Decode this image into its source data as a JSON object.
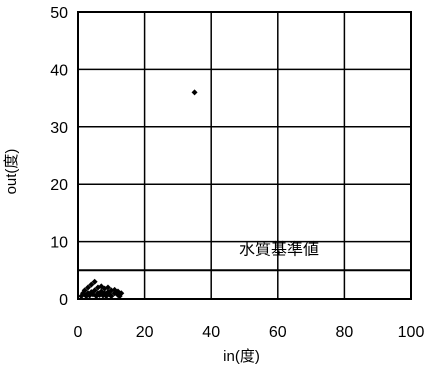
{
  "chart_data": {
    "type": "scatter",
    "title": "",
    "xlabel": "in(度)",
    "ylabel": "out(度)",
    "xlim": [
      0,
      100
    ],
    "ylim": [
      0,
      50
    ],
    "xticks": [
      0,
      20,
      40,
      60,
      80,
      100
    ],
    "yticks": [
      0,
      10,
      20,
      30,
      40,
      50
    ],
    "grid": true,
    "legend": "none",
    "marker_color": "#000000",
    "reference_line": {
      "y": 5,
      "label": "水質基準値"
    },
    "points": [
      {
        "x": 35,
        "y": 36
      },
      {
        "x": 1,
        "y": 0.5
      },
      {
        "x": 1.5,
        "y": 1
      },
      {
        "x": 2,
        "y": 0.8
      },
      {
        "x": 2,
        "y": 1.5
      },
      {
        "x": 2.5,
        "y": 0.5
      },
      {
        "x": 3,
        "y": 1
      },
      {
        "x": 3,
        "y": 2
      },
      {
        "x": 3.5,
        "y": 0.6
      },
      {
        "x": 4,
        "y": 1.2
      },
      {
        "x": 4,
        "y": 2.5
      },
      {
        "x": 4.5,
        "y": 0.8
      },
      {
        "x": 5,
        "y": 1.5
      },
      {
        "x": 5,
        "y": 3
      },
      {
        "x": 5.5,
        "y": 0.5
      },
      {
        "x": 6,
        "y": 1
      },
      {
        "x": 6,
        "y": 2
      },
      {
        "x": 6.5,
        "y": 0.7
      },
      {
        "x": 7,
        "y": 1.3
      },
      {
        "x": 7,
        "y": 2.2
      },
      {
        "x": 7.5,
        "y": 0.6
      },
      {
        "x": 8,
        "y": 1
      },
      {
        "x": 8,
        "y": 1.8
      },
      {
        "x": 8.5,
        "y": 0.5
      },
      {
        "x": 9,
        "y": 1.2
      },
      {
        "x": 9,
        "y": 2
      },
      {
        "x": 9.5,
        "y": 0.8
      },
      {
        "x": 10,
        "y": 1.5
      },
      {
        "x": 10,
        "y": 0.5
      },
      {
        "x": 11,
        "y": 1
      },
      {
        "x": 11,
        "y": 1.6
      },
      {
        "x": 12,
        "y": 0.7
      },
      {
        "x": 12,
        "y": 1.3
      },
      {
        "x": 12.5,
        "y": 0.5
      },
      {
        "x": 13,
        "y": 1
      }
    ]
  }
}
